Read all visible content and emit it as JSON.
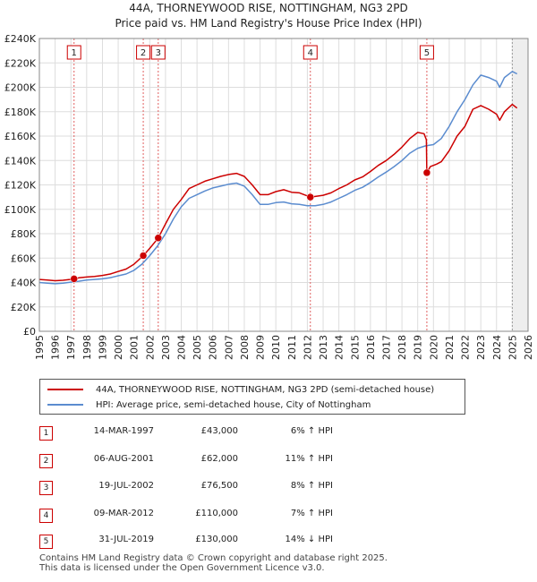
{
  "chart_data": {
    "type": "line",
    "title": "44A, THORNEYWOOD RISE, NOTTINGHAM, NG3 2PD",
    "subtitle": "Price paid vs. HM Land Registry's House Price Index (HPI)",
    "xlim": [
      1995,
      2026
    ],
    "ylim": [
      0,
      240000
    ],
    "x_ticks": [
      "1995",
      "1996",
      "1997",
      "1998",
      "1999",
      "2000",
      "2001",
      "2002",
      "2003",
      "2004",
      "2005",
      "2006",
      "2007",
      "2008",
      "2009",
      "2010",
      "2011",
      "2012",
      "2013",
      "2014",
      "2015",
      "2016",
      "2017",
      "2018",
      "2019",
      "2020",
      "2021",
      "2022",
      "2023",
      "2024",
      "2025",
      "2026"
    ],
    "y_ticks": [
      {
        "value": 0,
        "label": "£0"
      },
      {
        "value": 20000,
        "label": "£20K"
      },
      {
        "value": 40000,
        "label": "£40K"
      },
      {
        "value": 60000,
        "label": "£60K"
      },
      {
        "value": 80000,
        "label": "£80K"
      },
      {
        "value": 100000,
        "label": "£100K"
      },
      {
        "value": 120000,
        "label": "£120K"
      },
      {
        "value": 140000,
        "label": "£140K"
      },
      {
        "value": 160000,
        "label": "£160K"
      },
      {
        "value": 180000,
        "label": "£180K"
      },
      {
        "value": 200000,
        "label": "£200K"
      },
      {
        "value": 220000,
        "label": "£220K"
      },
      {
        "value": 240000,
        "label": "£240K"
      }
    ],
    "grid": true,
    "legend_position": "below",
    "series": [
      {
        "name": "44A, THORNEYWOOD RISE, NOTTINGHAM, NG3 2PD (semi-detached house)",
        "color": "#cc0000",
        "points": [
          [
            1995.0,
            42500
          ],
          [
            1995.5,
            42000
          ],
          [
            1996.0,
            41500
          ],
          [
            1996.5,
            41800
          ],
          [
            1997.0,
            42600
          ],
          [
            1997.2,
            43000
          ],
          [
            1997.5,
            43800
          ],
          [
            1998.0,
            44500
          ],
          [
            1998.5,
            45000
          ],
          [
            1999.0,
            45800
          ],
          [
            1999.5,
            47000
          ],
          [
            2000.0,
            49000
          ],
          [
            2000.5,
            51000
          ],
          [
            2001.0,
            55000
          ],
          [
            2001.59,
            62000
          ],
          [
            2002.0,
            68000
          ],
          [
            2002.54,
            76500
          ],
          [
            2003.0,
            88000
          ],
          [
            2003.5,
            100000
          ],
          [
            2004.0,
            108000
          ],
          [
            2004.5,
            117000
          ],
          [
            2005.0,
            120000
          ],
          [
            2005.5,
            123000
          ],
          [
            2006.0,
            125000
          ],
          [
            2006.5,
            127000
          ],
          [
            2007.0,
            128500
          ],
          [
            2007.5,
            129500
          ],
          [
            2008.0,
            127000
          ],
          [
            2008.5,
            120000
          ],
          [
            2009.0,
            112000
          ],
          [
            2009.5,
            112000
          ],
          [
            2010.0,
            114500
          ],
          [
            2010.5,
            116000
          ],
          [
            2011.0,
            114000
          ],
          [
            2011.5,
            113500
          ],
          [
            2012.0,
            111000
          ],
          [
            2012.19,
            110000
          ],
          [
            2012.5,
            110500
          ],
          [
            2013.0,
            111500
          ],
          [
            2013.5,
            113500
          ],
          [
            2014.0,
            117000
          ],
          [
            2014.5,
            120000
          ],
          [
            2015.0,
            124000
          ],
          [
            2015.5,
            126500
          ],
          [
            2016.0,
            131000
          ],
          [
            2016.5,
            136000
          ],
          [
            2017.0,
            140000
          ],
          [
            2017.5,
            145000
          ],
          [
            2018.0,
            151000
          ],
          [
            2018.5,
            158000
          ],
          [
            2019.0,
            163000
          ],
          [
            2019.4,
            162000
          ],
          [
            2019.55,
            157000
          ],
          [
            2019.58,
            130000
          ],
          [
            2019.8,
            135000
          ],
          [
            2020.2,
            137000
          ],
          [
            2020.5,
            139000
          ],
          [
            2021.0,
            148000
          ],
          [
            2021.5,
            160000
          ],
          [
            2022.0,
            168000
          ],
          [
            2022.5,
            182000
          ],
          [
            2023.0,
            185000
          ],
          [
            2023.5,
            182000
          ],
          [
            2024.0,
            178000
          ],
          [
            2024.2,
            173000
          ],
          [
            2024.5,
            180000
          ],
          [
            2025.0,
            186000
          ],
          [
            2025.3,
            183000
          ]
        ]
      },
      {
        "name": "HPI: Average price, semi-detached house, City of Nottingham",
        "color": "#5b8ccf",
        "points": [
          [
            1995.0,
            40000
          ],
          [
            1995.5,
            39500
          ],
          [
            1996.0,
            39000
          ],
          [
            1996.5,
            39500
          ],
          [
            1997.0,
            40300
          ],
          [
            1997.5,
            41000
          ],
          [
            1998.0,
            42000
          ],
          [
            1998.5,
            42500
          ],
          [
            1999.0,
            43000
          ],
          [
            1999.5,
            44000
          ],
          [
            2000.0,
            45500
          ],
          [
            2000.5,
            47000
          ],
          [
            2001.0,
            50000
          ],
          [
            2001.5,
            55000
          ],
          [
            2002.0,
            62000
          ],
          [
            2002.5,
            70000
          ],
          [
            2003.0,
            80000
          ],
          [
            2003.5,
            92000
          ],
          [
            2004.0,
            102000
          ],
          [
            2004.5,
            109000
          ],
          [
            2005.0,
            112000
          ],
          [
            2005.5,
            115000
          ],
          [
            2006.0,
            117500
          ],
          [
            2006.5,
            119000
          ],
          [
            2007.0,
            120500
          ],
          [
            2007.5,
            121500
          ],
          [
            2008.0,
            119000
          ],
          [
            2008.5,
            112000
          ],
          [
            2009.0,
            104000
          ],
          [
            2009.5,
            104000
          ],
          [
            2010.0,
            105500
          ],
          [
            2010.5,
            106000
          ],
          [
            2011.0,
            104500
          ],
          [
            2011.5,
            104000
          ],
          [
            2012.0,
            103000
          ],
          [
            2012.5,
            103000
          ],
          [
            2013.0,
            104000
          ],
          [
            2013.5,
            106000
          ],
          [
            2014.0,
            109000
          ],
          [
            2014.5,
            112000
          ],
          [
            2015.0,
            115500
          ],
          [
            2015.5,
            118000
          ],
          [
            2016.0,
            122000
          ],
          [
            2016.5,
            126500
          ],
          [
            2017.0,
            130500
          ],
          [
            2017.5,
            135000
          ],
          [
            2018.0,
            140000
          ],
          [
            2018.5,
            146000
          ],
          [
            2019.0,
            150000
          ],
          [
            2019.5,
            152000
          ],
          [
            2020.0,
            153000
          ],
          [
            2020.5,
            158000
          ],
          [
            2021.0,
            168000
          ],
          [
            2021.5,
            180000
          ],
          [
            2022.0,
            190000
          ],
          [
            2022.5,
            202000
          ],
          [
            2023.0,
            210000
          ],
          [
            2023.5,
            208000
          ],
          [
            2024.0,
            205000
          ],
          [
            2024.2,
            200000
          ],
          [
            2024.5,
            208000
          ],
          [
            2025.0,
            213000
          ],
          [
            2025.3,
            211000
          ]
        ]
      }
    ],
    "markers": [
      {
        "label": "1",
        "x": 1997.2,
        "y": 43000
      },
      {
        "label": "2",
        "x": 2001.59,
        "y": 62000
      },
      {
        "label": "3",
        "x": 2002.54,
        "y": 76500
      },
      {
        "label": "4",
        "x": 2012.19,
        "y": 110000
      },
      {
        "label": "5",
        "x": 2019.58,
        "y": 130000
      }
    ],
    "shade_after": 2025.0
  },
  "legend": {
    "property_label": "44A, THORNEYWOOD RISE, NOTTINGHAM, NG3 2PD (semi-detached house)",
    "hpi_label": "HPI: Average price, semi-detached house, City of Nottingham"
  },
  "sales": [
    {
      "num": "1",
      "date": "14-MAR-1997",
      "price": "£43,000",
      "hpi": "6% ↑ HPI"
    },
    {
      "num": "2",
      "date": "06-AUG-2001",
      "price": "£62,000",
      "hpi": "11% ↑ HPI"
    },
    {
      "num": "3",
      "date": "19-JUL-2002",
      "price": "£76,500",
      "hpi": "8% ↑ HPI"
    },
    {
      "num": "4",
      "date": "09-MAR-2012",
      "price": "£110,000",
      "hpi": "7% ↑ HPI"
    },
    {
      "num": "5",
      "date": "31-JUL-2019",
      "price": "£130,000",
      "hpi": "14% ↓ HPI"
    }
  ],
  "footer": {
    "line1": "Contains HM Land Registry data © Crown copyright and database right 2025.",
    "line2": "This data is licensed under the Open Government Licence v3.0."
  }
}
